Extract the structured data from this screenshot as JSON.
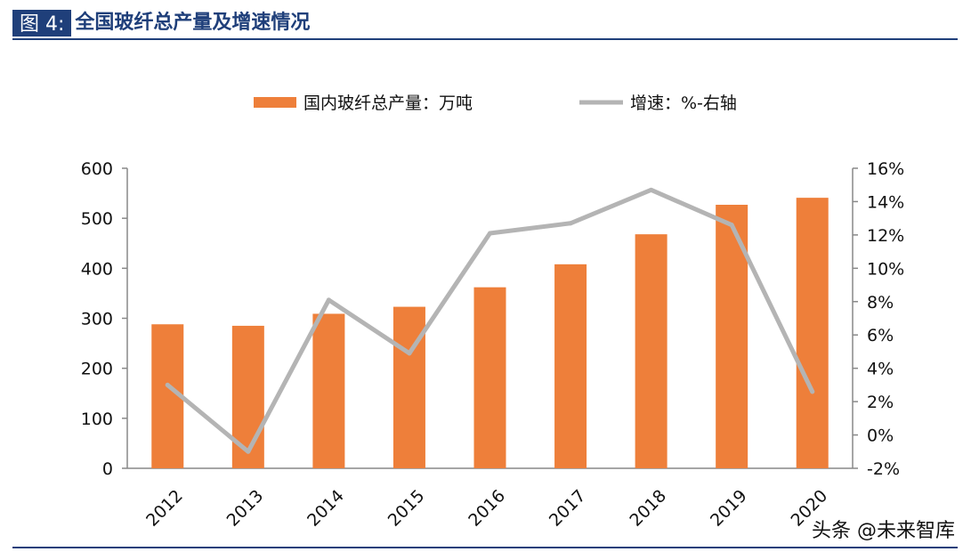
{
  "header": {
    "fig_label": "图 4:",
    "title": "全国玻纤总产量及增速情况"
  },
  "watermark": "头条 @未来智库",
  "chart_data": {
    "type": "bar+line",
    "categories": [
      "2012",
      "2013",
      "2014",
      "2015",
      "2016",
      "2017",
      "2018",
      "2019",
      "2020"
    ],
    "series": [
      {
        "name": "国内玻纤总产量：万吨",
        "type": "bar",
        "axis": "left",
        "color": "#ee7f3a",
        "values": [
          288,
          285,
          309,
          323,
          362,
          408,
          468,
          527,
          541
        ]
      },
      {
        "name": "增速：%-右轴",
        "type": "line",
        "axis": "right",
        "color": "#b4b4b4",
        "values": [
          3.0,
          -1.0,
          8.1,
          4.9,
          12.1,
          12.7,
          14.7,
          12.6,
          2.6
        ]
      }
    ],
    "left_axis": {
      "min": 0,
      "max": 600,
      "ticks": [
        "0",
        "100",
        "200",
        "300",
        "400",
        "500",
        "600"
      ]
    },
    "right_axis": {
      "min": -2,
      "max": 16,
      "ticks": [
        "-2%",
        "0%",
        "2%",
        "4%",
        "6%",
        "8%",
        "10%",
        "12%",
        "14%",
        "16%"
      ]
    },
    "legend": {
      "position": "top"
    }
  }
}
